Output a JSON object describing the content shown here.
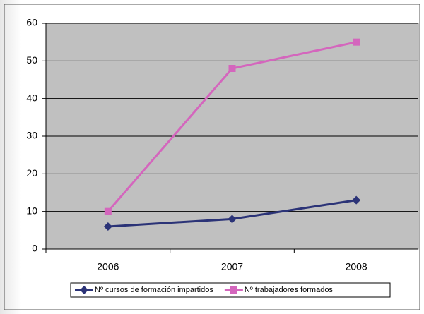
{
  "chart_data": {
    "type": "line",
    "categories": [
      "2006",
      "2007",
      "2008"
    ],
    "series": [
      {
        "name": "Nº cursos de formación impartidos",
        "color": "#2b3377",
        "marker": "diamond",
        "values": [
          6,
          8,
          13
        ]
      },
      {
        "name": "Nº trabajadores formados",
        "color": "#d466bd",
        "marker": "square",
        "values": [
          10,
          48,
          55
        ]
      }
    ],
    "ylim": [
      0,
      60
    ],
    "yticks": [
      0,
      10,
      20,
      30,
      40,
      50,
      60
    ],
    "grid": true,
    "legend": "bottom"
  }
}
